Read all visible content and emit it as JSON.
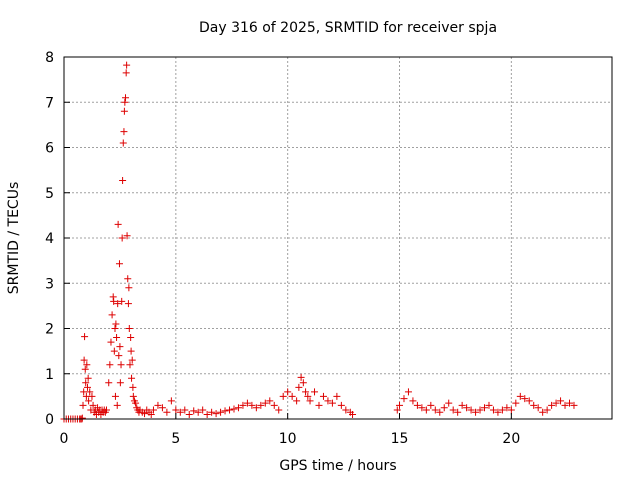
{
  "chart_data": {
    "type": "scatter",
    "title": "Day 316 of 2025, SRMTID for receiver spja",
    "xlabel": "GPS time / hours",
    "ylabel": "SRMTID / TECUs",
    "xlim": [
      0,
      24.5
    ],
    "ylim": [
      0,
      8
    ],
    "x_ticks": [
      0,
      5,
      10,
      15,
      20
    ],
    "y_ticks": [
      0,
      1,
      2,
      3,
      4,
      5,
      6,
      7,
      8
    ],
    "grid": true,
    "marker": "plus",
    "color": "#dd0000",
    "series": [
      {
        "name": "SRMTID",
        "x": [
          0.0,
          0.1,
          0.2,
          0.3,
          0.4,
          0.5,
          0.6,
          0.7,
          0.75,
          0.8,
          0.82,
          0.85,
          0.88,
          0.9,
          0.92,
          0.95,
          0.97,
          1.0,
          1.02,
          1.05,
          1.08,
          1.1,
          1.15,
          1.2,
          1.25,
          1.3,
          1.35,
          1.4,
          1.45,
          1.5,
          1.55,
          1.6,
          1.65,
          1.7,
          1.75,
          1.8,
          1.85,
          1.9,
          2.0,
          2.05,
          2.1,
          2.15,
          2.2,
          2.22,
          2.25,
          2.28,
          2.3,
          2.32,
          2.35,
          2.38,
          2.4,
          2.42,
          2.45,
          2.48,
          2.5,
          2.52,
          2.55,
          2.58,
          2.6,
          2.62,
          2.65,
          2.68,
          2.7,
          2.72,
          2.75,
          2.78,
          2.8,
          2.82,
          2.85,
          2.88,
          2.9,
          2.92,
          2.95,
          2.98,
          3.0,
          3.02,
          3.05,
          3.08,
          3.1,
          3.15,
          3.2,
          3.25,
          3.3,
          3.35,
          3.4,
          3.5,
          3.6,
          3.7,
          3.8,
          3.9,
          4.0,
          4.2,
          4.4,
          4.6,
          4.8,
          5.0,
          5.2,
          5.4,
          5.6,
          5.8,
          6.0,
          6.2,
          6.4,
          6.6,
          6.8,
          7.0,
          7.2,
          7.4,
          7.6,
          7.8,
          8.0,
          8.2,
          8.4,
          8.6,
          8.8,
          9.0,
          9.2,
          9.4,
          9.6,
          9.8,
          10.0,
          10.2,
          10.4,
          10.5,
          10.6,
          10.7,
          10.8,
          10.9,
          11.0,
          11.2,
          11.4,
          11.6,
          11.8,
          12.0,
          12.2,
          12.4,
          12.6,
          12.8,
          12.9,
          14.9,
          15.0,
          15.2,
          15.4,
          15.6,
          15.8,
          16.0,
          16.2,
          16.4,
          16.6,
          16.8,
          17.0,
          17.2,
          17.4,
          17.6,
          17.8,
          18.0,
          18.2,
          18.4,
          18.6,
          18.8,
          19.0,
          19.2,
          19.4,
          19.6,
          19.8,
          20.0,
          20.2,
          20.4,
          20.6,
          20.8,
          21.0,
          21.2,
          21.4,
          21.6,
          21.8,
          22.0,
          22.2,
          22.4,
          22.6,
          22.8
        ],
        "y": [
          0.0,
          0.0,
          0.0,
          0.0,
          0.0,
          0.0,
          0.0,
          0.0,
          0.0,
          0.0,
          0.02,
          0.3,
          0.6,
          1.3,
          1.82,
          1.1,
          0.8,
          0.5,
          1.2,
          0.7,
          0.9,
          0.4,
          0.6,
          0.2,
          0.5,
          0.3,
          0.15,
          0.2,
          0.1,
          0.25,
          0.15,
          0.2,
          0.1,
          0.2,
          0.15,
          0.2,
          0.15,
          0.2,
          0.8,
          1.2,
          1.7,
          2.3,
          2.7,
          2.6,
          1.5,
          2.0,
          0.5,
          2.1,
          1.8,
          0.3,
          2.55,
          4.3,
          1.4,
          3.43,
          1.6,
          0.8,
          1.2,
          2.6,
          4.0,
          5.27,
          6.1,
          6.35,
          6.8,
          7.0,
          7.1,
          7.65,
          7.82,
          4.05,
          3.1,
          2.55,
          2.9,
          2.0,
          1.2,
          1.8,
          1.5,
          0.9,
          1.3,
          0.7,
          0.5,
          0.4,
          0.35,
          0.25,
          0.2,
          0.15,
          0.2,
          0.15,
          0.12,
          0.2,
          0.15,
          0.1,
          0.2,
          0.3,
          0.25,
          0.15,
          0.4,
          0.2,
          0.15,
          0.2,
          0.1,
          0.18,
          0.15,
          0.2,
          0.1,
          0.15,
          0.12,
          0.15,
          0.18,
          0.2,
          0.22,
          0.25,
          0.3,
          0.35,
          0.3,
          0.25,
          0.3,
          0.35,
          0.4,
          0.3,
          0.2,
          0.5,
          0.6,
          0.5,
          0.4,
          0.7,
          0.92,
          0.8,
          0.6,
          0.5,
          0.4,
          0.6,
          0.3,
          0.5,
          0.4,
          0.35,
          0.5,
          0.3,
          0.2,
          0.15,
          0.1,
          0.2,
          0.3,
          0.45,
          0.6,
          0.4,
          0.3,
          0.25,
          0.2,
          0.3,
          0.2,
          0.15,
          0.25,
          0.35,
          0.2,
          0.15,
          0.3,
          0.25,
          0.2,
          0.15,
          0.2,
          0.25,
          0.3,
          0.2,
          0.15,
          0.2,
          0.25,
          0.2,
          0.35,
          0.5,
          0.45,
          0.4,
          0.3,
          0.25,
          0.15,
          0.2,
          0.3,
          0.35,
          0.4,
          0.3,
          0.35,
          0.3
        ]
      }
    ]
  }
}
